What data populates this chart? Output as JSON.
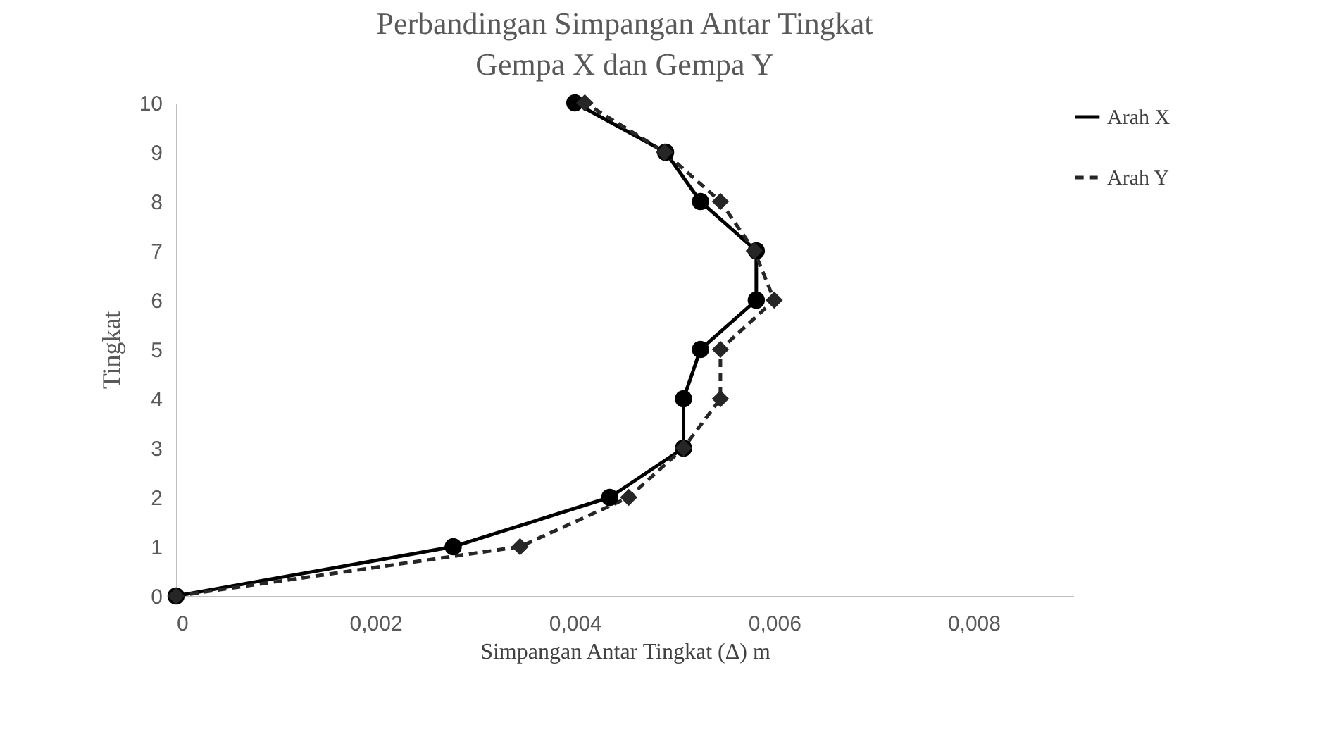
{
  "chart_data": {
    "type": "line",
    "title": "Perbandingan Simpangan Antar Tingkat\nGempa X dan Gempa Y",
    "xlabel": "Simpangan Antar Tingkat (Δ) m",
    "ylabel": "Tingkat",
    "xlim": [
      0,
      0.009
    ],
    "xticks": [
      0,
      {
        "value": 0.002,
        "label": "0,002"
      },
      {
        "value": 0.004,
        "label": "0,004"
      },
      {
        "value": 0.006,
        "label": "0,006"
      },
      {
        "value": 0.008,
        "label": "0,008"
      }
    ],
    "ylim": [
      0,
      10
    ],
    "yticks": [
      0,
      1,
      2,
      3,
      4,
      5,
      6,
      7,
      8,
      9,
      10
    ],
    "grid": false,
    "legend": "right",
    "series": [
      {
        "name": "Arah X",
        "color": "#000000",
        "marker": "circle",
        "line_style": "solid",
        "x": [
          0,
          0.00278,
          0.00435,
          0.00509,
          0.00509,
          0.00526,
          0.00582,
          0.00582,
          0.00526,
          0.00491,
          0.004
        ],
        "values": [
          0,
          1,
          2,
          3,
          4,
          5,
          6,
          7,
          8,
          9,
          10
        ]
      },
      {
        "name": "Arah Y",
        "color": "#262626",
        "marker": "diamond",
        "line_style": "dashed",
        "x": [
          0,
          0.00345,
          0.00454,
          0.00509,
          0.00546,
          0.00546,
          0.006,
          0.0058,
          0.00546,
          0.0049,
          0.0041
        ],
        "values": [
          0,
          1,
          2,
          3,
          4,
          5,
          6,
          7,
          8,
          9,
          10
        ]
      }
    ]
  }
}
